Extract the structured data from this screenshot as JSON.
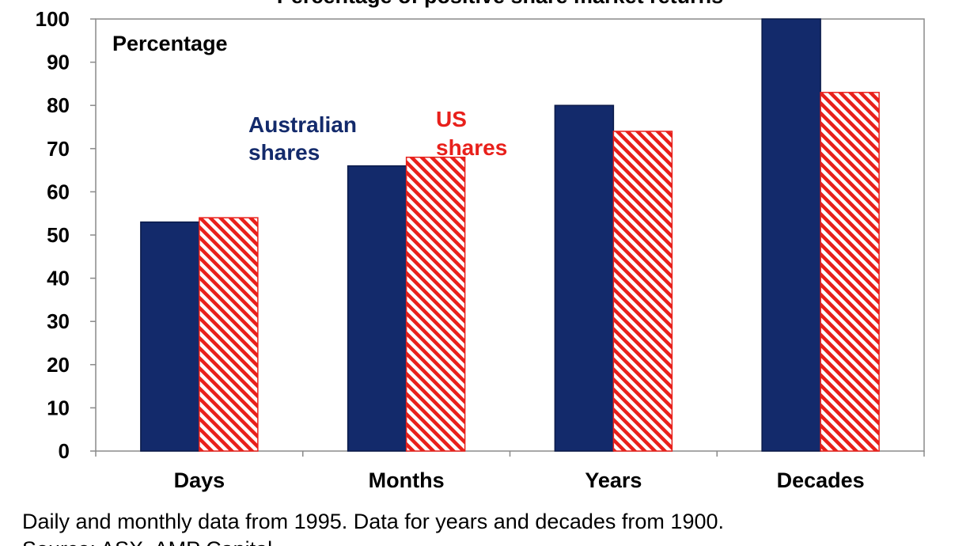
{
  "chart_data": {
    "type": "bar",
    "title": "Percentage of positive share market returns",
    "ylabel": "Percentage",
    "xlabel": "",
    "ylim": [
      0,
      100
    ],
    "yticks": [
      0,
      10,
      20,
      30,
      40,
      50,
      60,
      70,
      80,
      90,
      100
    ],
    "categories": [
      "Days",
      "Months",
      "Years",
      "Decades"
    ],
    "series": [
      {
        "name": "Australian shares",
        "name_lines": [
          "Australian",
          "shares"
        ],
        "color": "#132a6b",
        "fill": "solid",
        "values": [
          53,
          66,
          80,
          100
        ]
      },
      {
        "name": "US shares",
        "name_lines": [
          "US",
          "shares"
        ],
        "color": "#e8201b",
        "fill": "hatched",
        "values": [
          54,
          68,
          74,
          83
        ]
      }
    ],
    "grid": false,
    "legend": "inline labels inside plot",
    "notes": [
      "Daily and monthly data from 1995. Data for years and decades from 1900.",
      "Source: ASX, AMP Capital"
    ]
  }
}
